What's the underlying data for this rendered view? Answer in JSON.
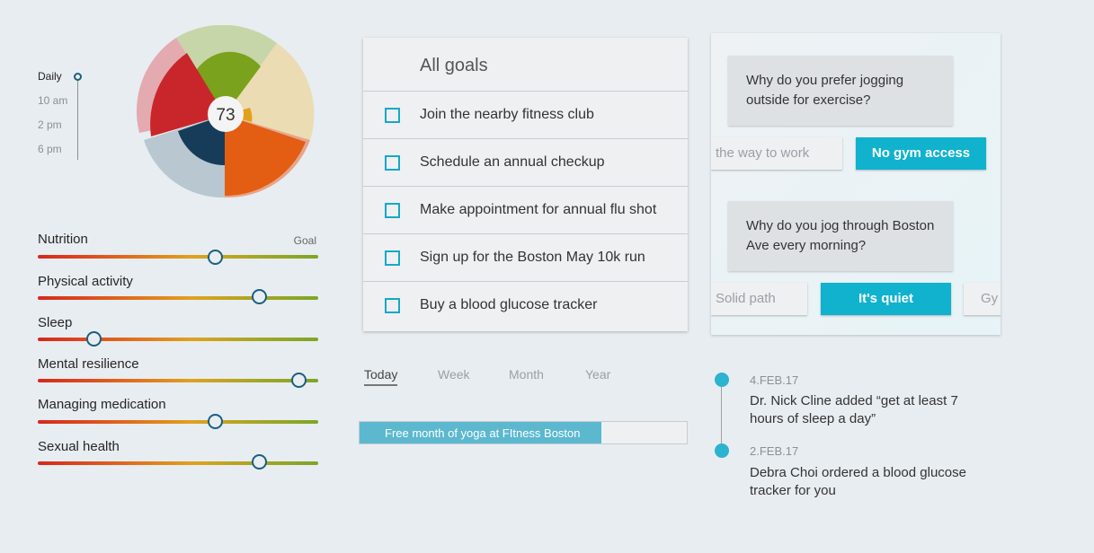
{
  "time_filter": {
    "items": [
      "Daily",
      "10 am",
      "2 pm",
      "6 pm"
    ],
    "selected": "Daily"
  },
  "score": {
    "value": "73"
  },
  "metrics": {
    "goal_label": "Goal",
    "items": [
      {
        "label": "Nutrition",
        "level": 0.63
      },
      {
        "label": "Physical activity",
        "level": 0.79
      },
      {
        "label": "Sleep",
        "level": 0.2
      },
      {
        "label": "Mental resilience",
        "level": 0.93
      },
      {
        "label": "Managing medication",
        "level": 0.63
      },
      {
        "label": "Sexual health",
        "level": 0.79
      }
    ]
  },
  "goals": {
    "title": "All goals",
    "items": [
      "Join the nearby fitness club",
      "Schedule an annual checkup",
      "Make appointment for annual flu shot",
      "Sign up for the Boston May 10k run",
      "Buy a blood glucose tracker"
    ]
  },
  "period_tabs": {
    "items": [
      "Today",
      "Week",
      "Month",
      "Year"
    ],
    "selected": "Today"
  },
  "promo": {
    "label": "Free month of yoga at FItness Boston",
    "progress": 0.74
  },
  "chat": {
    "q1": "Why do you prefer jogging outside for exercise?",
    "q1_options": [
      "the way to work",
      "No gym access"
    ],
    "q2": "Why do you jog through Boston Ave every morning?",
    "q2_options": [
      "Solid path",
      "It's quiet",
      "Gy"
    ]
  },
  "timeline": [
    {
      "date": "4.FEB.17",
      "text": "Dr. Nick Cline added “get at least 7 hours of sleep a day”"
    },
    {
      "date": "2.FEB.17",
      "text": "Debra Choi ordered a blood glucose tracker for you"
    }
  ],
  "colors": {
    "accent": "#10b2cd",
    "knob_border": "#1b5f7e",
    "background": "#e8edf1"
  }
}
